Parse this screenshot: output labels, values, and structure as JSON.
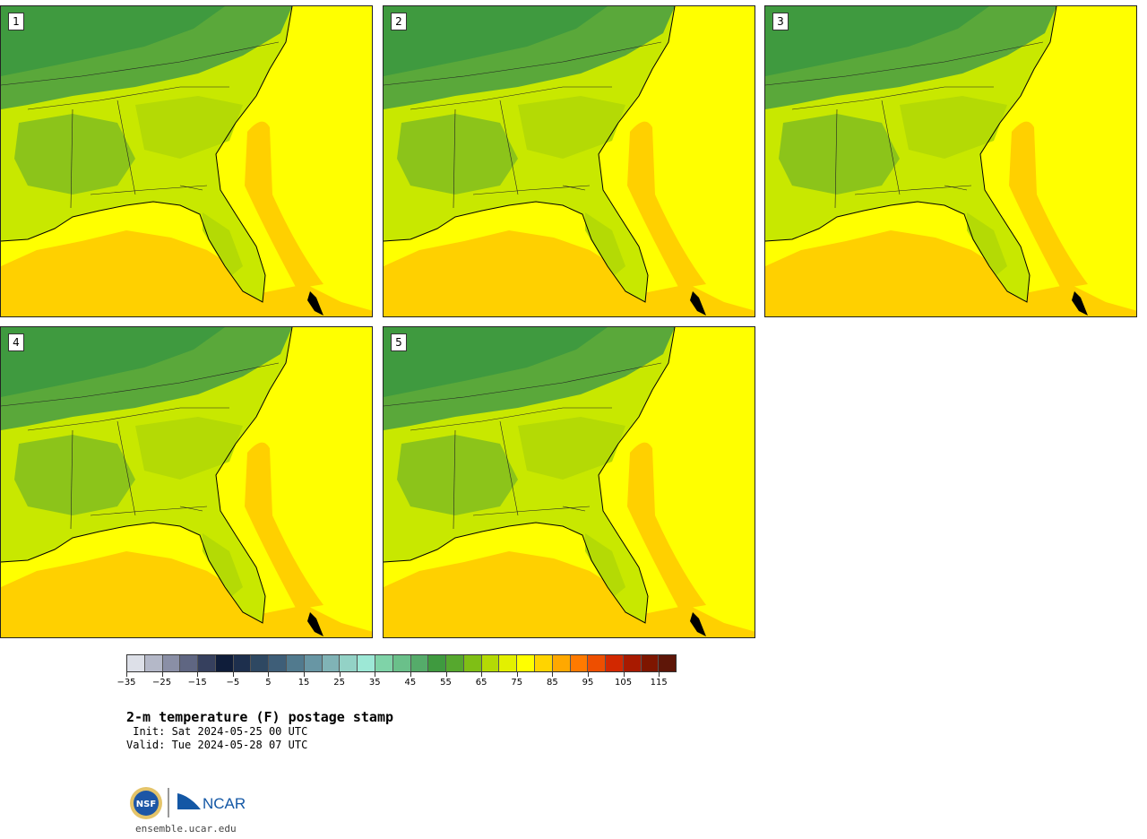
{
  "panels": [
    {
      "label": "1"
    },
    {
      "label": "2"
    },
    {
      "label": "3"
    },
    {
      "label": "4"
    },
    {
      "label": "5"
    }
  ],
  "colorbar": {
    "colors": [
      "#dde0e8",
      "#b4b8c8",
      "#8a8fa6",
      "#5f6682",
      "#36405e",
      "#0f1d3a",
      "#1d2f4d",
      "#2e4862",
      "#3e5e78",
      "#517a8e",
      "#6896a4",
      "#80b3b6",
      "#93d2c6",
      "#9de8d6",
      "#7fd3a8",
      "#6ac08a",
      "#55ab6a",
      "#3f9a3f",
      "#56a82e",
      "#7fbf15",
      "#b4da05",
      "#e3f000",
      "#ffff00",
      "#ffd400",
      "#ffa800",
      "#ff7a00",
      "#ee4f00",
      "#d22800",
      "#a81a00",
      "#7e1600",
      "#5e1608"
    ],
    "ticks": [
      "−35",
      "−25",
      "−15",
      "−5",
      "5",
      "15",
      "25",
      "35",
      "45",
      "55",
      "65",
      "75",
      "85",
      "95",
      "105",
      "115"
    ]
  },
  "title": "2-m temperature (F) postage stamp",
  "init": " Init: Sat 2024-05-25 00 UTC",
  "valid": "Valid: Tue 2024-05-28 07 UTC",
  "logos": {
    "nsf": "NSF",
    "ncar": "NCAR"
  },
  "site": "ensemble.ucar.edu"
}
